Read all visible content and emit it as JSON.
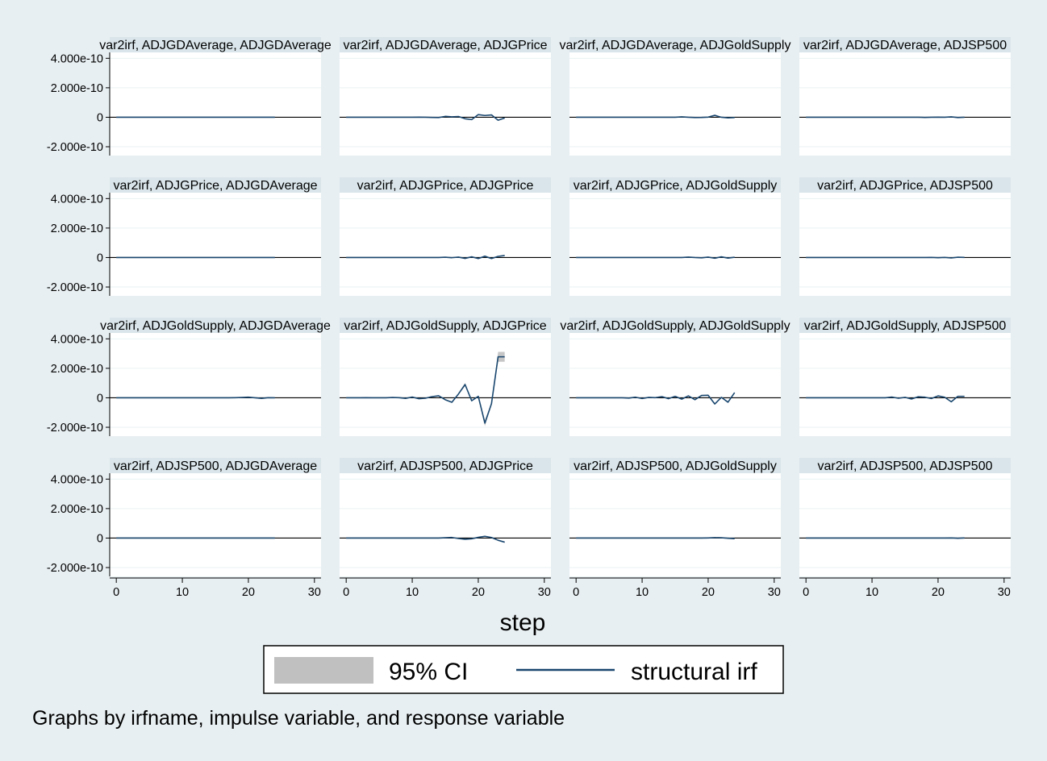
{
  "chart_data": {
    "type": "line",
    "layout": "4x4 small multiples",
    "xlabel": "step",
    "x_ticks": [
      0,
      10,
      20,
      30
    ],
    "xlim": [
      -1,
      31
    ],
    "ylim": [
      -2.6e-10,
      4.4e-10
    ],
    "y_ticks": [
      {
        "value": 4e-10,
        "label": "4.000e-10"
      },
      {
        "value": 2e-10,
        "label": "2.000e-10"
      },
      {
        "value": 0,
        "label": "0"
      },
      {
        "value": -2e-10,
        "label": "-2.000e-10"
      }
    ],
    "grid": true,
    "legend": {
      "position": "bottom",
      "entries": [
        {
          "label": "95% CI",
          "kind": "band",
          "color": "#c0c0c0"
        },
        {
          "label": "structural irf",
          "kind": "line",
          "color": "#1a476f"
        }
      ]
    },
    "note": "Graphs by irfname, impulse variable, and response variable",
    "steps": [
      0,
      1,
      2,
      3,
      4,
      5,
      6,
      7,
      8,
      9,
      10,
      11,
      12,
      13,
      14,
      15,
      16,
      17,
      18,
      19,
      20,
      21,
      22,
      23,
      24
    ],
    "colors": {
      "line": "#1a476f",
      "band": "#c0c0c0",
      "panel_title_bg": "#d9e5ea",
      "plot_bg": "#ffffff",
      "grid": "#eaf2f3"
    },
    "panels": [
      {
        "title": "var2irf, ADJGDAverage, ADJGDAverage",
        "irf": [
          0,
          0,
          0,
          0,
          0,
          0,
          0,
          0,
          0,
          0,
          0,
          0,
          0,
          0,
          0,
          0,
          0,
          0,
          0,
          0,
          0,
          0,
          0,
          0,
          0
        ],
        "ci_halfwidth": 0.02
      },
      {
        "title": "var2irf, ADJGDAverage, ADJGPrice",
        "irf": [
          0,
          0,
          0,
          0,
          0,
          0,
          0,
          0,
          0,
          0,
          0,
          0.1,
          0,
          -0.1,
          -0.2,
          0.6,
          0.3,
          0.5,
          -1.0,
          -1.6,
          1.8,
          1.2,
          1.6,
          -2.0,
          -0.5
        ],
        "ci_halfwidth": 0.05
      },
      {
        "title": "var2irf, ADJGDAverage, ADJGoldSupply",
        "irf": [
          0,
          0,
          0,
          0,
          0,
          0,
          0,
          0,
          0,
          0,
          0,
          0,
          0,
          0,
          0,
          0,
          0.3,
          0,
          -0.2,
          -0.1,
          0.1,
          1.3,
          0,
          -0.4,
          -0.2
        ],
        "ci_halfwidth": 0.03
      },
      {
        "title": "var2irf, ADJGDAverage, ADJSP500",
        "irf": [
          0,
          0,
          0,
          0,
          0,
          0,
          0,
          0,
          0,
          0,
          0,
          0,
          0,
          0,
          0,
          0,
          0,
          0,
          -0.1,
          0,
          0.1,
          0,
          0.3,
          -0.2,
          0
        ],
        "ci_halfwidth": 0.02
      },
      {
        "title": "var2irf, ADJGPrice, ADJGDAverage",
        "irf": [
          0,
          0,
          0,
          0,
          0,
          0,
          0,
          0,
          0,
          0,
          0,
          0,
          0,
          0,
          0,
          0,
          0,
          0,
          0,
          0,
          0,
          0,
          0,
          0,
          0
        ],
        "ci_halfwidth": 0.02
      },
      {
        "title": "var2irf, ADJGPrice, ADJGPrice",
        "irf": [
          0,
          0,
          0,
          0,
          0,
          0,
          0,
          0,
          0,
          0,
          0,
          0,
          0,
          0,
          0,
          0.2,
          -0.1,
          0.3,
          -0.6,
          0.5,
          -0.7,
          0.9,
          -0.7,
          0.8,
          1.4
        ],
        "ci_halfwidth": 0.05
      },
      {
        "title": "var2irf, ADJGPrice, ADJGoldSupply",
        "irf": [
          0,
          0,
          0,
          0,
          0,
          0,
          0,
          0,
          0,
          0,
          0,
          0,
          0,
          0,
          0,
          0,
          0,
          0.3,
          0,
          -0.2,
          0.3,
          -0.5,
          0.5,
          -0.4,
          0.2
        ],
        "ci_halfwidth": 0.03
      },
      {
        "title": "var2irf, ADJGPrice, ADJSP500",
        "irf": [
          0,
          0,
          0,
          0,
          0,
          0,
          0,
          0,
          0,
          0,
          0,
          0,
          0,
          0,
          0,
          0,
          0,
          0,
          0,
          0.1,
          -0.1,
          0.1,
          -0.3,
          0.2,
          0.1
        ],
        "ci_halfwidth": 0.02
      },
      {
        "title": "var2irf, ADJGoldSupply, ADJGDAverage",
        "irf": [
          0,
          0,
          0,
          0,
          0,
          0,
          0,
          0,
          0,
          0,
          0,
          0,
          0,
          0,
          0,
          0,
          0,
          0,
          0.1,
          0.2,
          0.4,
          0,
          -0.4,
          0.1,
          0
        ],
        "ci_halfwidth": 0.02
      },
      {
        "title": "var2irf, ADJGoldSupply, ADJGPrice",
        "irf": [
          0,
          0,
          0,
          0.1,
          0,
          0,
          0,
          0.2,
          0.1,
          -0.4,
          0.5,
          -0.6,
          -0.3,
          0.8,
          1.4,
          -1.3,
          -3.0,
          2.6,
          9.0,
          -2.0,
          1.0,
          -17.2,
          -4.0,
          27.8,
          27.8
        ],
        "ci_halfwidth": 0.08
      },
      {
        "title": "var2irf, ADJGoldSupply, ADJGoldSupply",
        "irf": [
          0,
          0,
          0,
          0,
          0,
          0,
          0,
          0,
          -0.2,
          0.4,
          -0.5,
          0.3,
          0.1,
          0.8,
          -0.6,
          1.0,
          -0.9,
          1.3,
          -1.3,
          1.6,
          1.7,
          -4.2,
          0.3,
          -3.0,
          3.5
        ],
        "ci_halfwidth": 0.04
      },
      {
        "title": "var2irf, ADJGoldSupply, ADJSP500",
        "irf": [
          0,
          0,
          0,
          0,
          0,
          0,
          0,
          0,
          0,
          0,
          0,
          0,
          0,
          0.5,
          -0.3,
          0.3,
          -0.8,
          0.7,
          0.4,
          -0.5,
          1.3,
          0.4,
          -2.7,
          1.0,
          1.0
        ],
        "ci_halfwidth": 0.03
      },
      {
        "title": "var2irf, ADJSP500, ADJGDAverage",
        "irf": [
          0,
          0,
          0,
          0,
          0,
          0,
          0,
          0,
          0,
          0,
          0,
          0,
          0,
          0,
          0,
          0,
          0,
          0,
          0,
          0,
          0,
          0,
          0,
          0,
          0
        ],
        "ci_halfwidth": 0.02
      },
      {
        "title": "var2irf, ADJSP500, ADJGPrice",
        "irf": [
          0,
          0,
          0,
          0,
          0,
          0,
          0,
          0,
          0,
          0,
          0,
          0,
          0,
          0,
          0,
          0.2,
          0.4,
          -0.3,
          -0.8,
          -0.5,
          0.5,
          1.2,
          0.4,
          -1.5,
          -2.8
        ],
        "ci_halfwidth": 0.04
      },
      {
        "title": "var2irf, ADJSP500, ADJGoldSupply",
        "irf": [
          0,
          0,
          0,
          0,
          0,
          0,
          0,
          0,
          0,
          0,
          0,
          0,
          0,
          0,
          0,
          0,
          0,
          0,
          0,
          0,
          0.1,
          0.3,
          0.2,
          -0.1,
          -0.4
        ],
        "ci_halfwidth": 0.02
      },
      {
        "title": "var2irf, ADJSP500, ADJSP500",
        "irf": [
          0,
          0,
          0,
          0,
          0,
          0,
          0,
          0,
          0,
          0,
          0,
          0,
          0,
          0,
          0,
          0,
          0,
          0,
          0,
          0,
          0,
          0,
          0.1,
          -0.1,
          0.1
        ],
        "ci_halfwidth": 0.02
      }
    ]
  }
}
